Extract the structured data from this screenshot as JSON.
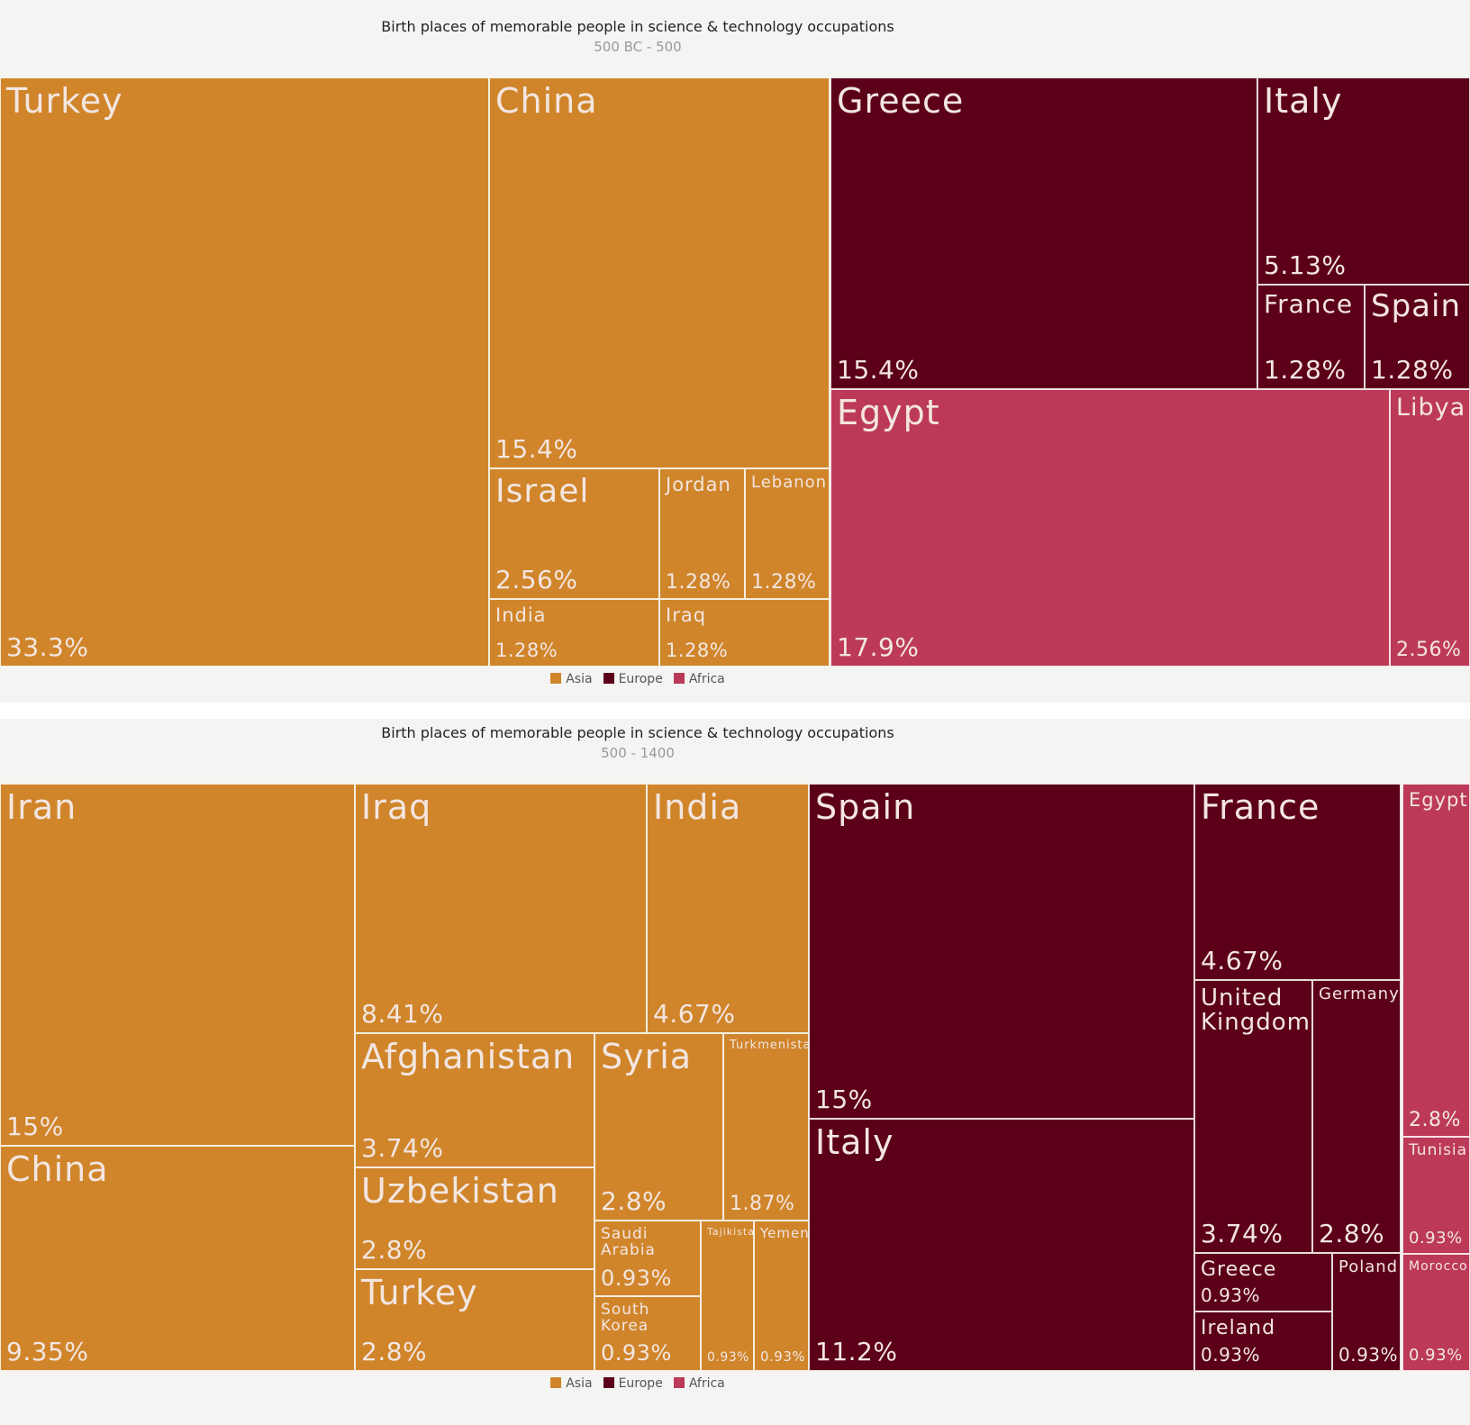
{
  "colors": {
    "Asia": "#d0852b",
    "Europe": "#5c0019",
    "Africa": "#bc3a58"
  },
  "legend": [
    "Asia",
    "Europe",
    "Africa"
  ],
  "chart_data": [
    {
      "type": "treemap",
      "title": "Birth places of memorable people in science & technology occupations",
      "subtitle": "500 BC - 500",
      "legend": [
        "Asia",
        "Europe",
        "Africa"
      ],
      "groups": [
        {
          "name": "Asia",
          "items": [
            {
              "label": "Turkey",
              "value": 33.3,
              "value_label": "33.3%"
            },
            {
              "label": "China",
              "value": 15.4,
              "value_label": "15.4%"
            },
            {
              "label": "Israel",
              "value": 2.56,
              "value_label": "2.56%"
            },
            {
              "label": "Jordan",
              "value": 1.28,
              "value_label": "1.28%"
            },
            {
              "label": "Lebanon",
              "value": 1.28,
              "value_label": "1.28%"
            },
            {
              "label": "India",
              "value": 1.28,
              "value_label": "1.28%"
            },
            {
              "label": "Iraq",
              "value": 1.28,
              "value_label": "1.28%"
            }
          ]
        },
        {
          "name": "Europe",
          "items": [
            {
              "label": "Greece",
              "value": 15.4,
              "value_label": "15.4%"
            },
            {
              "label": "Italy",
              "value": 5.13,
              "value_label": "5.13%"
            },
            {
              "label": "France",
              "value": 1.28,
              "value_label": "1.28%"
            },
            {
              "label": "Spain",
              "value": 1.28,
              "value_label": "1.28%"
            }
          ]
        },
        {
          "name": "Africa",
          "items": [
            {
              "label": "Egypt",
              "value": 17.9,
              "value_label": "17.9%"
            },
            {
              "label": "Libya",
              "value": 2.56,
              "value_label": "2.56%"
            }
          ]
        }
      ]
    },
    {
      "type": "treemap",
      "title": "Birth places of memorable people in science & technology occupations",
      "subtitle": "500 - 1400",
      "legend": [
        "Asia",
        "Europe",
        "Africa"
      ],
      "groups": [
        {
          "name": "Asia",
          "items": [
            {
              "label": "Iran",
              "value": 15,
              "value_label": "15%"
            },
            {
              "label": "China",
              "value": 9.35,
              "value_label": "9.35%"
            },
            {
              "label": "Iraq",
              "value": 8.41,
              "value_label": "8.41%"
            },
            {
              "label": "India",
              "value": 4.67,
              "value_label": "4.67%"
            },
            {
              "label": "Afghanistan",
              "value": 3.74,
              "value_label": "3.74%"
            },
            {
              "label": "Syria",
              "value": 2.8,
              "value_label": "2.8%"
            },
            {
              "label": "Turkmenistan",
              "value": 1.87,
              "value_label": "1.87%"
            },
            {
              "label": "Uzbekistan",
              "value": 2.8,
              "value_label": "2.8%"
            },
            {
              "label": "Turkey",
              "value": 2.8,
              "value_label": "2.8%"
            },
            {
              "label": "Saudi Arabia",
              "value": 0.93,
              "value_label": "0.93%"
            },
            {
              "label": "South Korea",
              "value": 0.93,
              "value_label": "0.93%"
            },
            {
              "label": "Tajikistan",
              "value": 0.93,
              "value_label": "0.93%"
            },
            {
              "label": "Yemen",
              "value": 0.93,
              "value_label": "0.93%"
            }
          ]
        },
        {
          "name": "Europe",
          "items": [
            {
              "label": "Spain",
              "value": 15,
              "value_label": "15%"
            },
            {
              "label": "Italy",
              "value": 11.2,
              "value_label": "11.2%"
            },
            {
              "label": "France",
              "value": 4.67,
              "value_label": "4.67%"
            },
            {
              "label": "United\nKingdom",
              "value": 3.74,
              "value_label": "3.74%"
            },
            {
              "label": "Germany",
              "value": 2.8,
              "value_label": "2.8%"
            },
            {
              "label": "Greece",
              "value": 0.93,
              "value_label": "0.93%"
            },
            {
              "label": "Ireland",
              "value": 0.93,
              "value_label": "0.93%"
            },
            {
              "label": "Poland",
              "value": 0.93,
              "value_label": "0.93%"
            }
          ]
        },
        {
          "name": "Africa",
          "items": [
            {
              "label": "Egypt",
              "value": 2.8,
              "value_label": "2.8%"
            },
            {
              "label": "Tunisia",
              "value": 0.93,
              "value_label": "0.93%"
            },
            {
              "label": "Morocco",
              "value": 0.93,
              "value_label": "0.93%"
            }
          ]
        }
      ]
    }
  ]
}
